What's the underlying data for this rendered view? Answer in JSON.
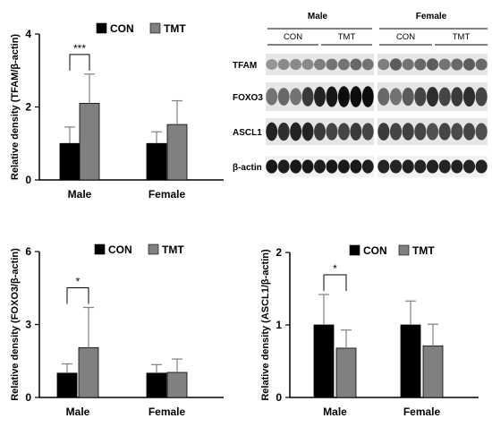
{
  "colors": {
    "con": "#000000",
    "tmt": "#808080",
    "error": "#808080",
    "axis": "#000000"
  },
  "chart_data": [
    {
      "type": "bar",
      "ylabel": "Relative density (TFAM/β-actin)",
      "categories": [
        "Male",
        "Female"
      ],
      "yticks": [
        "0",
        "2",
        "4"
      ],
      "ylim": [
        0,
        4
      ],
      "legend": [
        "CON",
        "TMT"
      ],
      "legend_placement": "top-left",
      "series": [
        {
          "name": "CON",
          "values": [
            1.0,
            1.0
          ],
          "errors": [
            0.45,
            0.32
          ]
        },
        {
          "name": "TMT",
          "values": [
            2.1,
            1.52
          ],
          "errors": [
            0.8,
            0.65
          ]
        }
      ],
      "significance": {
        "category": "Male",
        "label": "***"
      }
    },
    {
      "type": "bar",
      "ylabel": "Relative density (FOXO3/β-actin)",
      "categories": [
        "Male",
        "Female"
      ],
      "yticks": [
        "0",
        "3",
        "6"
      ],
      "ylim": [
        0,
        6
      ],
      "legend": [
        "CON",
        "TMT"
      ],
      "legend_placement": "top-left",
      "series": [
        {
          "name": "CON",
          "values": [
            1.0,
            1.0
          ],
          "errors": [
            0.38,
            0.35
          ]
        },
        {
          "name": "TMT",
          "values": [
            2.05,
            1.03
          ],
          "errors": [
            1.65,
            0.55
          ]
        }
      ],
      "significance": {
        "category": "Male",
        "label": "*"
      }
    },
    {
      "type": "bar",
      "ylabel": "Relative density (ASCL1/β-actin)",
      "categories": [
        "Male",
        "Female"
      ],
      "yticks": [
        "0",
        "1",
        "2"
      ],
      "ylim": [
        0,
        2
      ],
      "legend": [
        "CON",
        "TMT"
      ],
      "legend_placement": "top-right",
      "series": [
        {
          "name": "CON",
          "values": [
            1.0,
            1.0
          ],
          "errors": [
            0.42,
            0.33
          ]
        },
        {
          "name": "TMT",
          "values": [
            0.68,
            0.71
          ],
          "errors": [
            0.25,
            0.3
          ]
        }
      ],
      "significance": {
        "category": "Male",
        "label": "*"
      }
    }
  ],
  "blot": {
    "sex_headers": [
      "Male",
      "Female"
    ],
    "group_headers": [
      "CON",
      "TMT",
      "CON",
      "TMT"
    ],
    "rows": [
      "TFAM",
      "FOXO3",
      "ASCL1",
      "β-actin"
    ]
  }
}
